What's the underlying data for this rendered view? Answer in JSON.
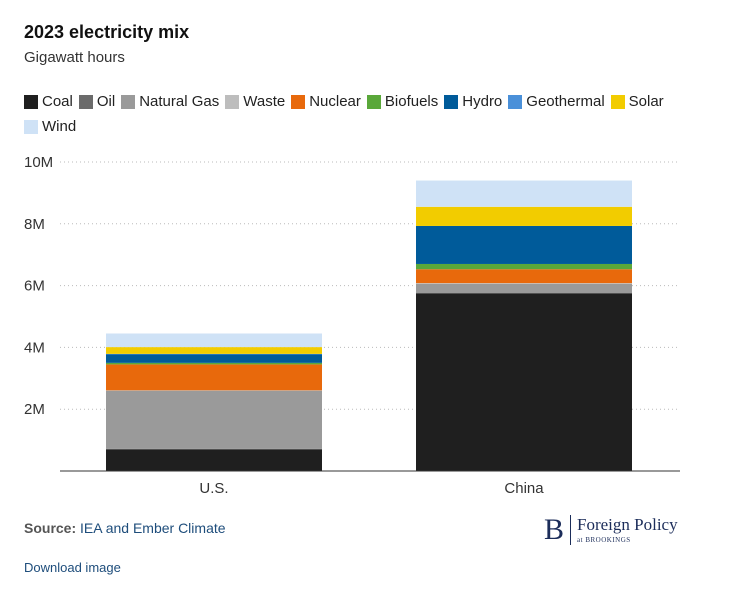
{
  "title": "2023 electricity mix",
  "subtitle": "Gigawatt hours",
  "source_label": "Source:",
  "source_text": "IEA and Ember Climate",
  "download_label": "Download image",
  "logo": {
    "letter": "B",
    "main": "Foreign Policy",
    "sub": "at BROOKINGS"
  },
  "chart_data": {
    "type": "bar",
    "stacked": true,
    "title": "2023 electricity mix",
    "subtitle": "Gigawatt hours",
    "categories": [
      "U.S.",
      "China"
    ],
    "ylim": [
      0,
      10000000
    ],
    "yticks": [
      2000000,
      4000000,
      6000000,
      8000000,
      10000000
    ],
    "ytick_labels": [
      "2M",
      "4M",
      "6M",
      "8M",
      "10M"
    ],
    "grid": true,
    "legend_position": "top",
    "series": [
      {
        "name": "Coal",
        "color": "#1f1f1f",
        "values": [
          700000,
          5750000
        ]
      },
      {
        "name": "Oil",
        "color": "#6b6b6b",
        "values": [
          20000,
          10000
        ]
      },
      {
        "name": "Natural Gas",
        "color": "#9a9a9a",
        "values": [
          1880000,
          300000
        ]
      },
      {
        "name": "Waste",
        "color": "#bdbdbd",
        "values": [
          10000,
          20000
        ]
      },
      {
        "name": "Nuclear",
        "color": "#e8690c",
        "values": [
          840000,
          450000
        ]
      },
      {
        "name": "Biofuels",
        "color": "#5aa83a",
        "values": [
          50000,
          170000
        ]
      },
      {
        "name": "Hydro",
        "color": "#005b9a",
        "values": [
          270000,
          1230000
        ]
      },
      {
        "name": "Geothermal",
        "color": "#4a90d9",
        "values": [
          20000,
          0
        ]
      },
      {
        "name": "Solar",
        "color": "#f2cc00",
        "values": [
          220000,
          620000
        ]
      },
      {
        "name": "Wind",
        "color": "#cfe2f6",
        "values": [
          440000,
          850000
        ]
      }
    ]
  }
}
